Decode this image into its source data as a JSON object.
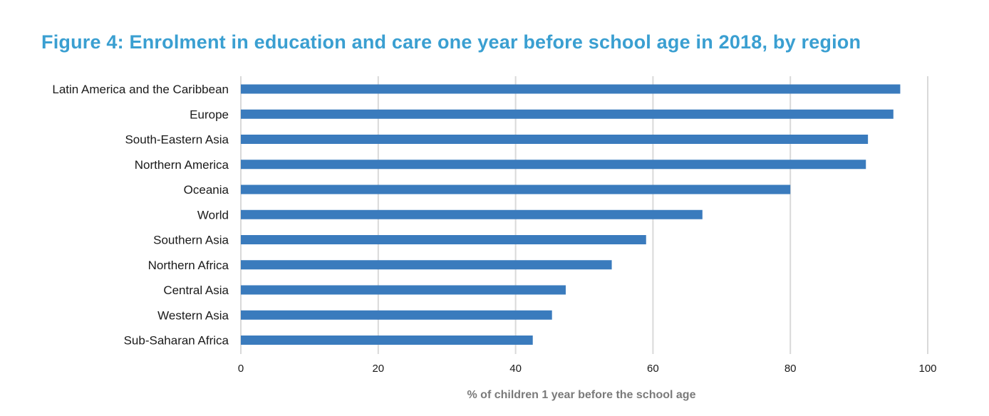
{
  "chart_data": {
    "type": "bar",
    "orientation": "horizontal",
    "title": "Figure 4: Enrolment in education and care one year before school age in 2018, by region",
    "xlabel": "% of children 1 year before the school age",
    "ylabel": "",
    "categories": [
      "Latin America and the Caribbean",
      "Europe",
      "South-Eastern Asia",
      "Northern America",
      "Oceania",
      "World",
      "Southern Asia",
      "Northern Africa",
      "Central Asia",
      "Western Asia",
      "Sub-Saharan Africa"
    ],
    "values": [
      96,
      95,
      91.3,
      91,
      80,
      67.2,
      59,
      54,
      47.3,
      45.3,
      42.5
    ],
    "xlim": [
      0,
      100
    ],
    "xticks": [
      0,
      20,
      40,
      60,
      80,
      100
    ],
    "grid": "vertical",
    "legend": "none",
    "colors": {
      "bar": "#3a7bbd",
      "title": "#3a9fd1",
      "grid": "#d9d9d9",
      "axis_title": "#7a7a7a",
      "label": "#1a1a1a"
    }
  }
}
